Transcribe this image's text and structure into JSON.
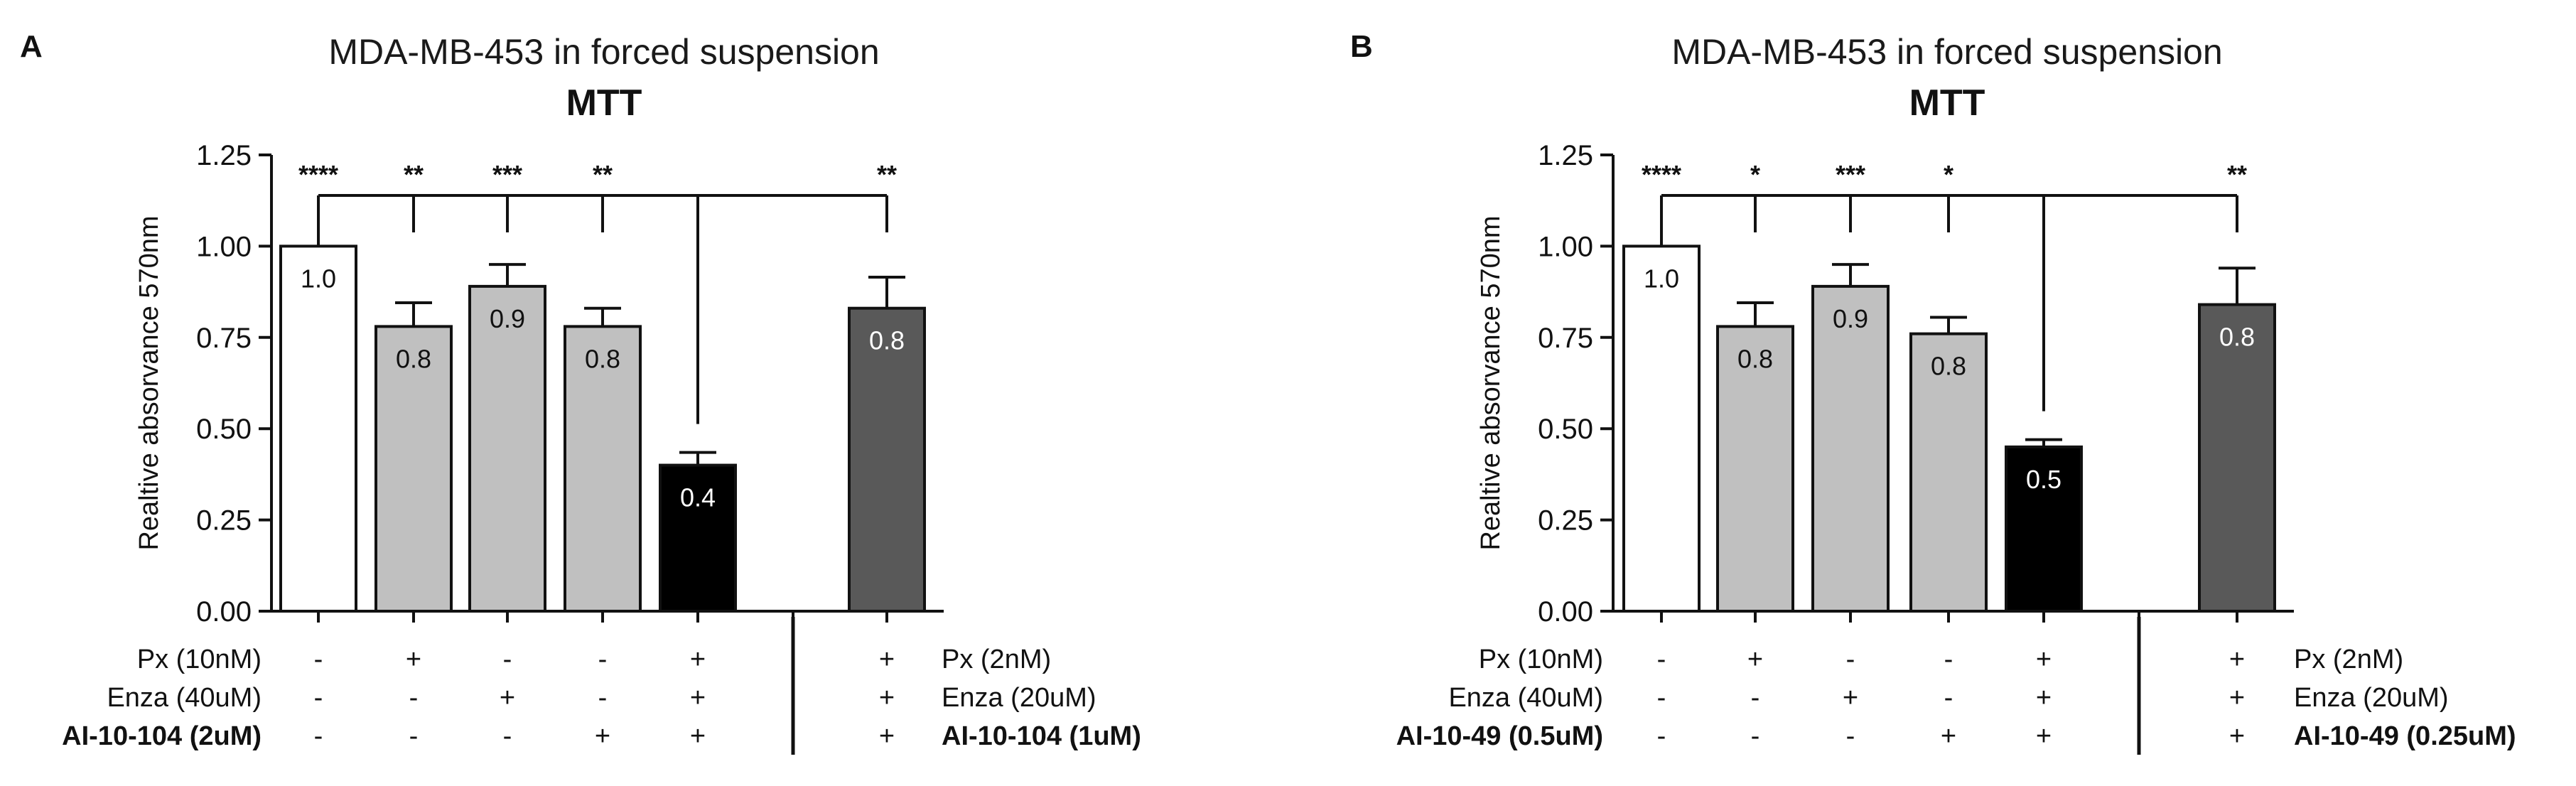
{
  "chart_data": [
    {
      "panel": "A",
      "type": "bar",
      "title": "MDA-MB-453 in forced suspension",
      "subtitle": "MTT",
      "ylabel": "Realtive absorvance 570nm",
      "ylim": [
        0,
        1.25
      ],
      "yticks": [
        "0.00",
        "0.25",
        "0.50",
        "0.75",
        "1.00",
        "1.25"
      ],
      "bars": [
        {
          "value": 1.0,
          "error": 0.0,
          "label": "1.0",
          "color": "#ffffff",
          "label_color": "#111111",
          "sig": "****"
        },
        {
          "value": 0.78,
          "error": 0.065,
          "label": "0.8",
          "color": "#c0c0c0",
          "label_color": "#111111",
          "sig": "**"
        },
        {
          "value": 0.89,
          "error": 0.06,
          "label": "0.9",
          "color": "#c0c0c0",
          "label_color": "#111111",
          "sig": "***"
        },
        {
          "value": 0.78,
          "error": 0.05,
          "label": "0.8",
          "color": "#c0c0c0",
          "label_color": "#111111",
          "sig": "**"
        },
        {
          "value": 0.4,
          "error": 0.035,
          "label": "0.4",
          "color": "#000000",
          "label_color": "#ffffff",
          "sig": ""
        },
        {
          "value": 0.83,
          "error": 0.085,
          "label": "0.8",
          "color": "#595959",
          "label_color": "#ffffff",
          "sig": "**"
        }
      ],
      "reference_bar": 4,
      "treatments_left": {
        "labels": [
          "Px (10nM)",
          "Enza (40uM)",
          "AI-10-104 (2uM)"
        ],
        "grid": [
          [
            "-",
            "+",
            "-",
            "-",
            "+"
          ],
          [
            "-",
            "-",
            "+",
            "-",
            "+"
          ],
          [
            "-",
            "-",
            "-",
            "+",
            "+"
          ]
        ]
      },
      "treatments_right": {
        "labels": [
          "Px (2nM)",
          "Enza (20uM)",
          "AI-10-104 (1uM)"
        ],
        "grid": [
          [
            "+"
          ],
          [
            "+"
          ],
          [
            "+"
          ]
        ]
      }
    },
    {
      "panel": "B",
      "type": "bar",
      "title": "MDA-MB-453 in forced suspension",
      "subtitle": "MTT",
      "ylabel": "Realtive absorvance 570nm",
      "ylim": [
        0,
        1.25
      ],
      "yticks": [
        "0.00",
        "0.25",
        "0.50",
        "0.75",
        "1.00",
        "1.25"
      ],
      "bars": [
        {
          "value": 1.0,
          "error": 0.0,
          "label": "1.0",
          "color": "#ffffff",
          "label_color": "#111111",
          "sig": "****"
        },
        {
          "value": 0.78,
          "error": 0.065,
          "label": "0.8",
          "color": "#c0c0c0",
          "label_color": "#111111",
          "sig": "*"
        },
        {
          "value": 0.89,
          "error": 0.06,
          "label": "0.9",
          "color": "#c0c0c0",
          "label_color": "#111111",
          "sig": "***"
        },
        {
          "value": 0.76,
          "error": 0.045,
          "label": "0.8",
          "color": "#c0c0c0",
          "label_color": "#111111",
          "sig": "*"
        },
        {
          "value": 0.45,
          "error": 0.02,
          "label": "0.5",
          "color": "#000000",
          "label_color": "#ffffff",
          "sig": ""
        },
        {
          "value": 0.84,
          "error": 0.1,
          "label": "0.8",
          "color": "#595959",
          "label_color": "#ffffff",
          "sig": "**"
        }
      ],
      "reference_bar": 4,
      "treatments_left": {
        "labels": [
          "Px (10nM)",
          "Enza (40uM)",
          "AI-10-49 (0.5uM)"
        ],
        "grid": [
          [
            "-",
            "+",
            "-",
            "-",
            "+"
          ],
          [
            "-",
            "-",
            "+",
            "-",
            "+"
          ],
          [
            "-",
            "-",
            "-",
            "+",
            "+"
          ]
        ]
      },
      "treatments_right": {
        "labels": [
          "Px (2nM)",
          "Enza (20uM)",
          "AI-10-49 (0.25uM)"
        ],
        "grid": [
          [
            "+"
          ],
          [
            "+"
          ],
          [
            "+"
          ]
        ]
      }
    }
  ]
}
